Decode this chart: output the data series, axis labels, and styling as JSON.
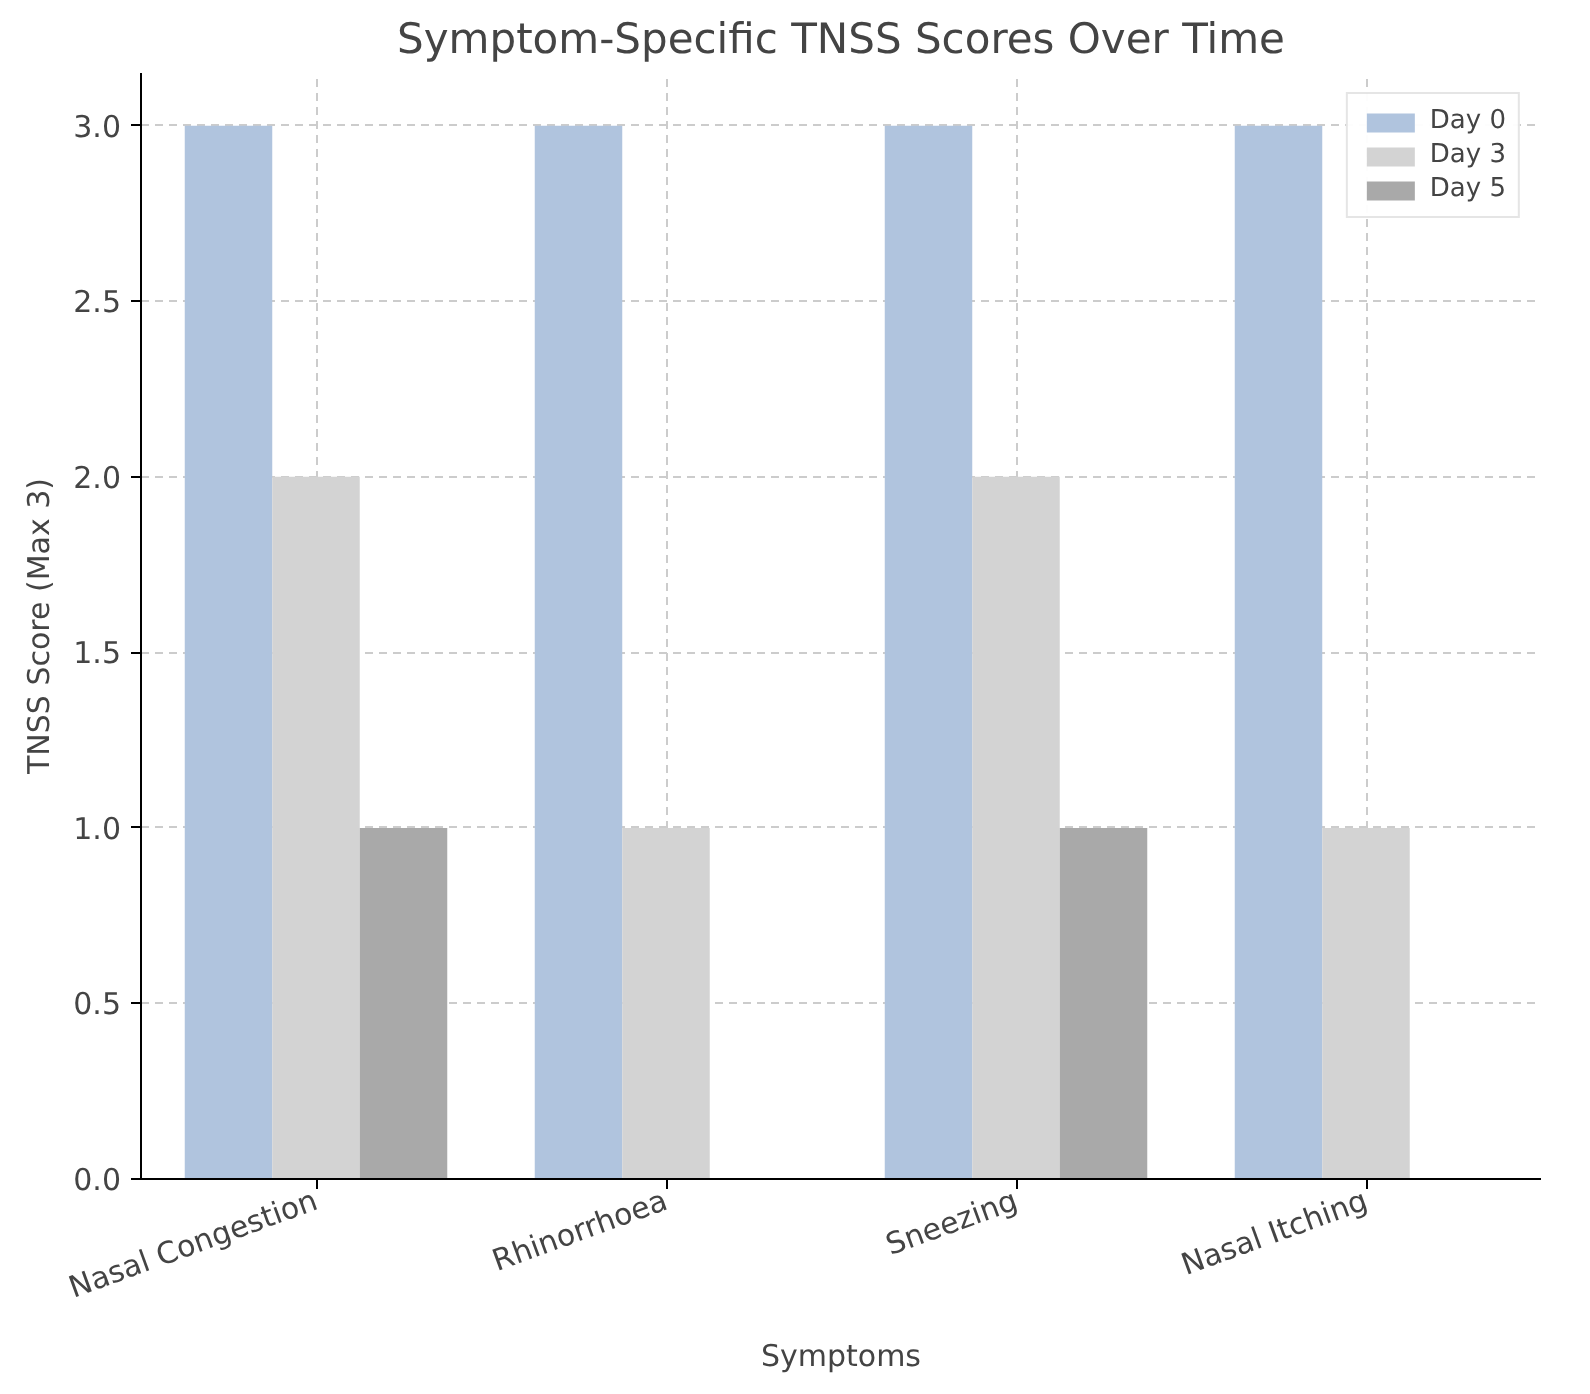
{
  "chart_data": {
    "type": "bar",
    "title": "Symptom-Specific TNSS Scores Over Time",
    "xlabel": "Symptoms",
    "ylabel": "TNSS Score (Max 3)",
    "categories": [
      "Nasal Congestion",
      "Rhinorrhoea",
      "Sneezing",
      "Nasal Itching"
    ],
    "series": [
      {
        "name": "Day 0",
        "color": "#b0c4de",
        "values": [
          3,
          3,
          3,
          3
        ]
      },
      {
        "name": "Day 3",
        "color": "#d3d3d3",
        "values": [
          2,
          1,
          2,
          1
        ]
      },
      {
        "name": "Day 5",
        "color": "#a9a9a9",
        "values": [
          1,
          0,
          1,
          0
        ]
      }
    ],
    "ylim": [
      0,
      3.15
    ],
    "yticks": [
      {
        "value": 0,
        "label": "0.0"
      },
      {
        "value": 0.5,
        "label": "0.5"
      },
      {
        "value": 1,
        "label": "1.0"
      },
      {
        "value": 1.5,
        "label": "1.5"
      },
      {
        "value": 2,
        "label": "2.0"
      },
      {
        "value": 2.5,
        "label": "2.5"
      },
      {
        "value": 3,
        "label": "3.0"
      }
    ],
    "grid": true,
    "legend": "top right"
  }
}
